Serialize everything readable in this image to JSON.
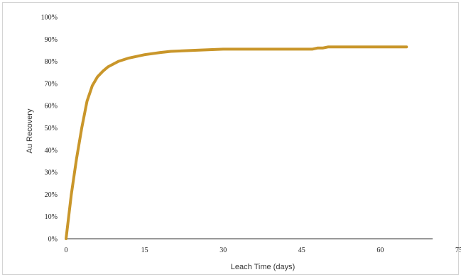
{
  "chart_data": {
    "type": "line",
    "xlabel": "Leach Time (days)",
    "ylabel": "Au Recovery",
    "xlim": [
      0,
      75
    ],
    "ylim": [
      0,
      100
    ],
    "x_ticks": [
      "0",
      "15",
      "30",
      "45",
      "60",
      "75"
    ],
    "y_ticks": [
      "0%",
      "10%",
      "20%",
      "30%",
      "40%",
      "50%",
      "60%",
      "70%",
      "80%",
      "90%",
      "100%"
    ],
    "grid": false,
    "legend": "none",
    "line_color": "#c9962a",
    "series": [
      {
        "x": [
          0,
          0.5,
          1,
          2,
          3,
          4,
          5,
          6,
          7,
          8,
          10,
          12,
          15,
          18,
          20,
          25,
          30,
          35,
          40,
          45,
          47,
          48,
          49,
          50,
          55,
          60,
          65
        ],
        "y": [
          0,
          10,
          20,
          36,
          50,
          62,
          69,
          73,
          75.5,
          77.5,
          80,
          81.5,
          83,
          84,
          84.5,
          85,
          85.5,
          85.5,
          85.5,
          85.5,
          85.5,
          86,
          86,
          86.5,
          86.5,
          86.5,
          86.5
        ]
      }
    ]
  }
}
